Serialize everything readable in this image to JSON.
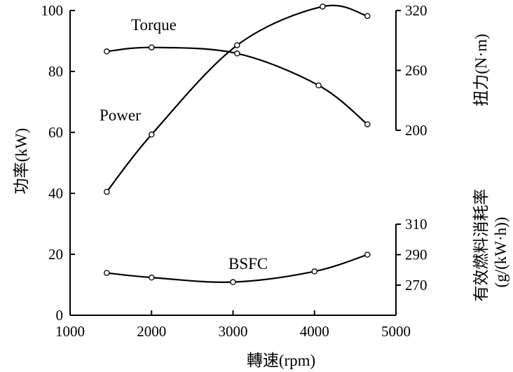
{
  "chart_data": {
    "type": "line",
    "x_axis": {
      "label": "轉速(rpm)",
      "range": [
        1000,
        5000
      ],
      "ticks": [
        "1000",
        "2000",
        "3000",
        "4000",
        "5000"
      ]
    },
    "left_axis": {
      "label": "功率(kW)",
      "range": [
        0,
        100
      ],
      "ticks": [
        "0",
        "20",
        "40",
        "60",
        "80",
        "100"
      ]
    },
    "right_torque_axis": {
      "label": "扭力(N·m)",
      "ticks": [
        "200",
        "260",
        "320"
      ],
      "tick_values": [
        200,
        260,
        320
      ]
    },
    "right_bsfc_axis": {
      "label_line1": "有效燃料消耗率",
      "label_line2": "(g/(kW·h))",
      "ticks": [
        "270",
        "290",
        "310"
      ],
      "tick_values": [
        270,
        290,
        310
      ]
    },
    "series": [
      {
        "name": "Torque",
        "axis": "right_torque",
        "x": [
          1450,
          2000,
          3050,
          4050,
          4650
        ],
        "y": [
          279,
          283,
          277,
          245,
          206
        ]
      },
      {
        "name": "Power",
        "axis": "left",
        "x": [
          1450,
          2000,
          3050,
          4100,
          4650
        ],
        "y": [
          40.5,
          59.3,
          88.6,
          101.3,
          98.2
        ]
      },
      {
        "name": "BSFC",
        "axis": "right_bsfc",
        "x": [
          1450,
          2000,
          3000,
          4000,
          4650
        ],
        "y": [
          278,
          275,
          272,
          279,
          290
        ]
      }
    ],
    "grid": false
  }
}
